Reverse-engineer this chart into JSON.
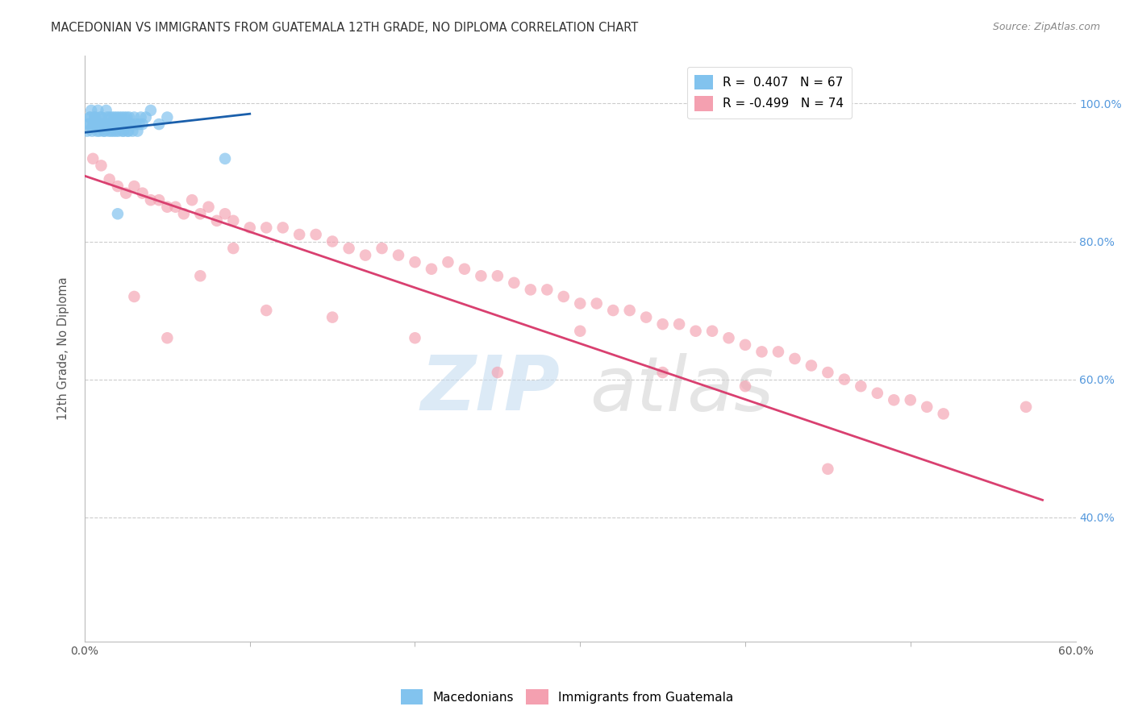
{
  "title": "MACEDONIAN VS IMMIGRANTS FROM GUATEMALA 12TH GRADE, NO DIPLOMA CORRELATION CHART",
  "source": "Source: ZipAtlas.com",
  "ylabel": "12th Grade, No Diploma",
  "x_tick_labels_edge": [
    "0.0%",
    "60.0%"
  ],
  "x_tick_vals_edge": [
    0,
    60
  ],
  "x_minor_ticks": [
    10,
    20,
    30,
    40,
    50
  ],
  "y_tick_labels_right": [
    "40.0%",
    "60.0%",
    "80.0%",
    "100.0%"
  ],
  "y_tick_vals": [
    40,
    60,
    80,
    100
  ],
  "xlim": [
    0,
    60
  ],
  "ylim": [
    22,
    107
  ],
  "legend_label_blue": "R =  0.407   N = 67",
  "legend_label_pink": "R = -0.499   N = 74",
  "legend_bottom_blue": "Macedonians",
  "legend_bottom_pink": "Immigrants from Guatemala",
  "blue_color": "#82C3EE",
  "pink_color": "#F4A0B0",
  "blue_line_color": "#1A5FAB",
  "pink_line_color": "#D94070",
  "watermark_zip": "ZIP",
  "watermark_atlas": "atlas",
  "title_fontsize": 10.5,
  "source_fontsize": 9,
  "blue_scatter_x": [
    0.2,
    0.3,
    0.4,
    0.5,
    0.6,
    0.7,
    0.8,
    0.9,
    1.0,
    1.1,
    1.2,
    1.3,
    1.4,
    1.5,
    1.6,
    1.7,
    1.8,
    1.9,
    2.0,
    2.1,
    2.2,
    2.3,
    2.4,
    2.5,
    2.6,
    2.7,
    2.8,
    2.9,
    3.0,
    3.1,
    3.2,
    3.3,
    3.4,
    3.5,
    3.7,
    4.0,
    4.5,
    5.0,
    0.15,
    0.25,
    0.35,
    0.45,
    0.55,
    0.65,
    0.75,
    0.85,
    0.95,
    1.05,
    1.15,
    1.25,
    1.35,
    1.45,
    1.55,
    1.65,
    1.75,
    1.85,
    1.95,
    2.05,
    2.15,
    2.25,
    2.35,
    2.45,
    2.55,
    2.65,
    2.75,
    2.0,
    8.5
  ],
  "blue_scatter_y": [
    97,
    98,
    99,
    97,
    98,
    97,
    99,
    96,
    98,
    97,
    96,
    99,
    97,
    98,
    96,
    97,
    98,
    96,
    97,
    98,
    97,
    96,
    98,
    97,
    96,
    98,
    97,
    96,
    98,
    97,
    96,
    97,
    98,
    97,
    98,
    99,
    97,
    98,
    96,
    97,
    98,
    96,
    97,
    98,
    96,
    97,
    98,
    97,
    96,
    97,
    98,
    96,
    97,
    98,
    96,
    97,
    98,
    96,
    97,
    98,
    96,
    97,
    98,
    96,
    97,
    84,
    92
  ],
  "pink_scatter_x": [
    0.5,
    1.0,
    1.5,
    2.0,
    2.5,
    3.0,
    3.5,
    4.0,
    4.5,
    5.0,
    5.5,
    6.0,
    6.5,
    7.0,
    7.5,
    8.0,
    8.5,
    9.0,
    10.0,
    11.0,
    12.0,
    13.0,
    14.0,
    15.0,
    16.0,
    17.0,
    18.0,
    19.0,
    20.0,
    21.0,
    22.0,
    23.0,
    24.0,
    25.0,
    26.0,
    27.0,
    28.0,
    29.0,
    30.0,
    31.0,
    32.0,
    33.0,
    34.0,
    35.0,
    36.0,
    37.0,
    38.0,
    39.0,
    40.0,
    41.0,
    42.0,
    43.0,
    44.0,
    45.0,
    46.0,
    47.0,
    48.0,
    49.0,
    50.0,
    51.0,
    52.0,
    3.0,
    5.0,
    7.0,
    9.0,
    11.0,
    15.0,
    20.0,
    25.0,
    30.0,
    35.0,
    40.0,
    45.0,
    57.0
  ],
  "pink_scatter_y": [
    92,
    91,
    89,
    88,
    87,
    88,
    87,
    86,
    86,
    85,
    85,
    84,
    86,
    84,
    85,
    83,
    84,
    83,
    82,
    82,
    82,
    81,
    81,
    80,
    79,
    78,
    79,
    78,
    77,
    76,
    77,
    76,
    75,
    75,
    74,
    73,
    73,
    72,
    71,
    71,
    70,
    70,
    69,
    68,
    68,
    67,
    67,
    66,
    65,
    64,
    64,
    63,
    62,
    61,
    60,
    59,
    58,
    57,
    57,
    56,
    55,
    72,
    66,
    75,
    79,
    70,
    69,
    66,
    61,
    67,
    61,
    59,
    47,
    56
  ],
  "blue_trend_x": [
    0,
    10
  ],
  "blue_trend_y": [
    95.8,
    98.5
  ],
  "pink_trend_x": [
    0,
    58
  ],
  "pink_trend_y": [
    89.5,
    42.5
  ]
}
